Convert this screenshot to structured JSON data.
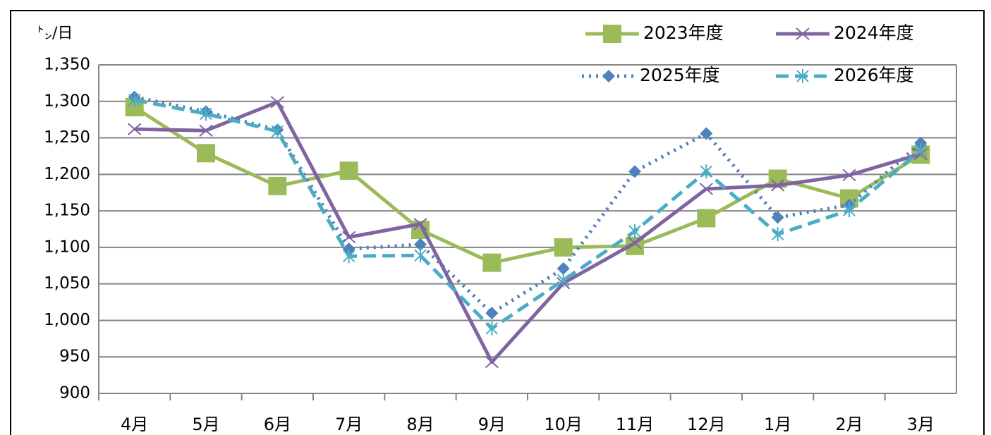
{
  "chart_data": {
    "type": "line",
    "y_unit": "㌧/日",
    "categories": [
      "4月",
      "5月",
      "6月",
      "7月",
      "8月",
      "9月",
      "10月",
      "11月",
      "12月",
      "1月",
      "2月",
      "3月"
    ],
    "series": [
      {
        "name": "2023年度",
        "color": "#9bbb59",
        "marker": "square",
        "dash": "solid",
        "values": [
          1292,
          1229,
          1184,
          1205,
          1124,
          1079,
          1100,
          1102,
          1140,
          1194,
          1167,
          1227
        ]
      },
      {
        "name": "2024年度",
        "color": "#8064a2",
        "marker": "x",
        "dash": "solid",
        "values": [
          1262,
          1260,
          1299,
          1114,
          1132,
          943,
          1051,
          1106,
          1180,
          1185,
          1199,
          1228
        ]
      },
      {
        "name": "2025年度",
        "color": "#4f81bd",
        "marker": "diamond",
        "dash": "dotted",
        "values": [
          1306,
          1286,
          1261,
          1098,
          1104,
          1010,
          1071,
          1204,
          1256,
          1141,
          1158,
          1243
        ]
      },
      {
        "name": "2026年度",
        "color": "#4bacc6",
        "marker": "asterisk",
        "dash": "dashed",
        "values": [
          1302,
          1283,
          1259,
          1088,
          1089,
          989,
          1055,
          1122,
          1204,
          1118,
          1151,
          1233
        ]
      }
    ],
    "ylim": [
      900,
      1350
    ],
    "yticks": [
      900,
      950,
      1000,
      1050,
      1100,
      1150,
      1200,
      1250,
      1300,
      {
        "value": 1000,
        "label": "1,000"
      },
      {
        "value": 1050,
        "label": "1,050"
      },
      {
        "value": 1100,
        "label": "1,100"
      },
      {
        "value": 1150,
        "label": "1,150"
      },
      {
        "value": 1200,
        "label": "1,200"
      },
      {
        "value": 1250,
        "label": "1,250"
      },
      {
        "value": 1300,
        "label": "1,300"
      },
      {
        "value": 1350,
        "label": "1,350"
      }
    ],
    "grid": true
  }
}
